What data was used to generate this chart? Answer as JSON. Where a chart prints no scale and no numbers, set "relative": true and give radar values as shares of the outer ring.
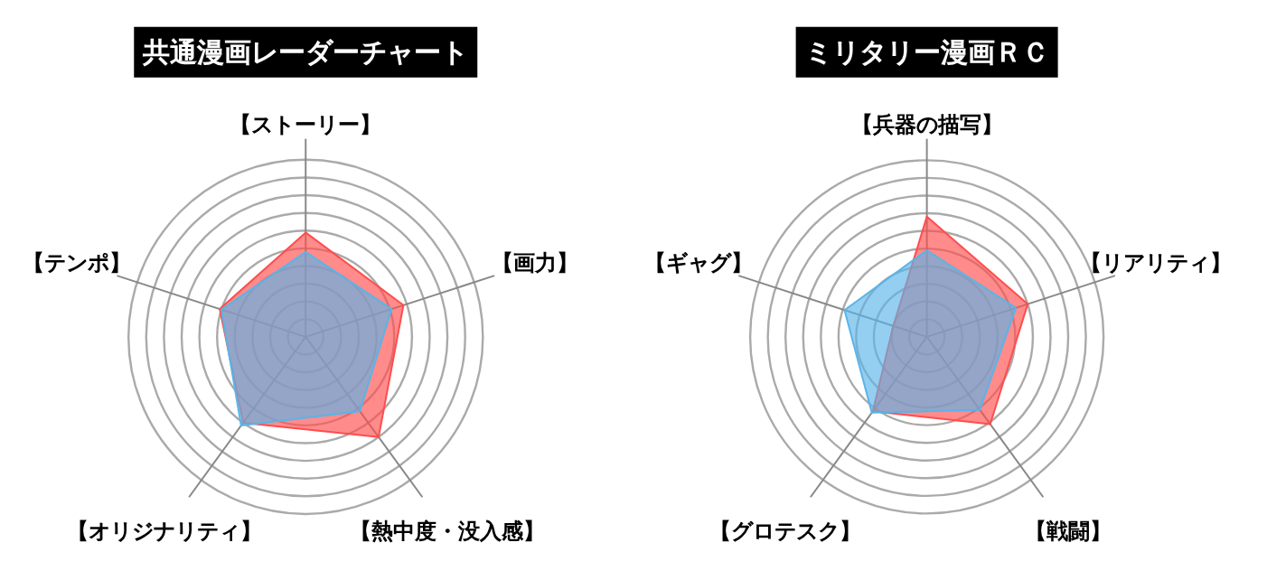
{
  "chart_data": [
    {
      "type": "radar",
      "title": "共通漫画レーダーチャート",
      "categories": [
        "【ストーリー】",
        "【画力】",
        "【熱中度・没入感】",
        "【オリジナリティ】",
        "【テンポ】"
      ],
      "relative": true,
      "grid": true,
      "series": [
        {
          "color": "#ff4d4d",
          "values": [
            0.59,
            0.58,
            0.7,
            0.6,
            0.51
          ]
        },
        {
          "color": "#5ab4e8",
          "values": [
            0.48,
            0.51,
            0.52,
            0.62,
            0.5
          ]
        }
      ]
    },
    {
      "type": "radar",
      "title": "ミリタリー漫画ＲＣ",
      "categories": [
        "【兵器の描写】",
        "【リアリティ】",
        "【戦闘】",
        "【グロテスク】",
        "【ギャグ】"
      ],
      "relative": true,
      "grid": true,
      "series": [
        {
          "color": "#ff4d4d",
          "values": [
            0.68,
            0.6,
            0.61,
            0.52,
            0.2
          ]
        },
        {
          "color": "#5ab4e8",
          "values": [
            0.49,
            0.53,
            0.51,
            0.53,
            0.49
          ]
        }
      ]
    }
  ]
}
